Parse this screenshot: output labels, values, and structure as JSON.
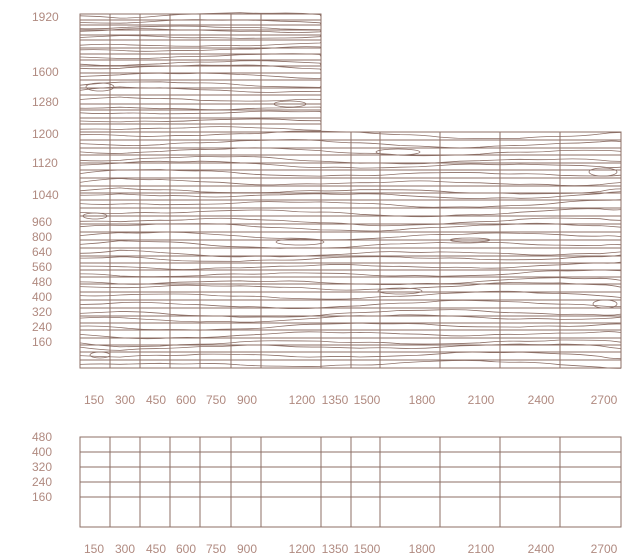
{
  "colors": {
    "line": "#8c6f66",
    "label": "#b08a80",
    "background": "#ffffff"
  },
  "upper_panel": {
    "x_labels": [
      "150",
      "300",
      "450",
      "600",
      "750",
      "900",
      "1200",
      "1350",
      "1500",
      "1800",
      "2100",
      "2400",
      "2700"
    ],
    "y_labels": [
      "1920",
      "1600",
      "1280",
      "1200",
      "1120",
      "1040",
      "960",
      "800",
      "640",
      "560",
      "480",
      "400",
      "320",
      "240",
      "160"
    ],
    "grain_texture": "wood-grain"
  },
  "lower_panel": {
    "x_labels": [
      "150",
      "300",
      "450",
      "600",
      "750",
      "900",
      "1200",
      "1350",
      "1500",
      "1800",
      "2100",
      "2400",
      "2700"
    ],
    "y_labels": [
      "480",
      "400",
      "320",
      "240",
      "160"
    ]
  }
}
